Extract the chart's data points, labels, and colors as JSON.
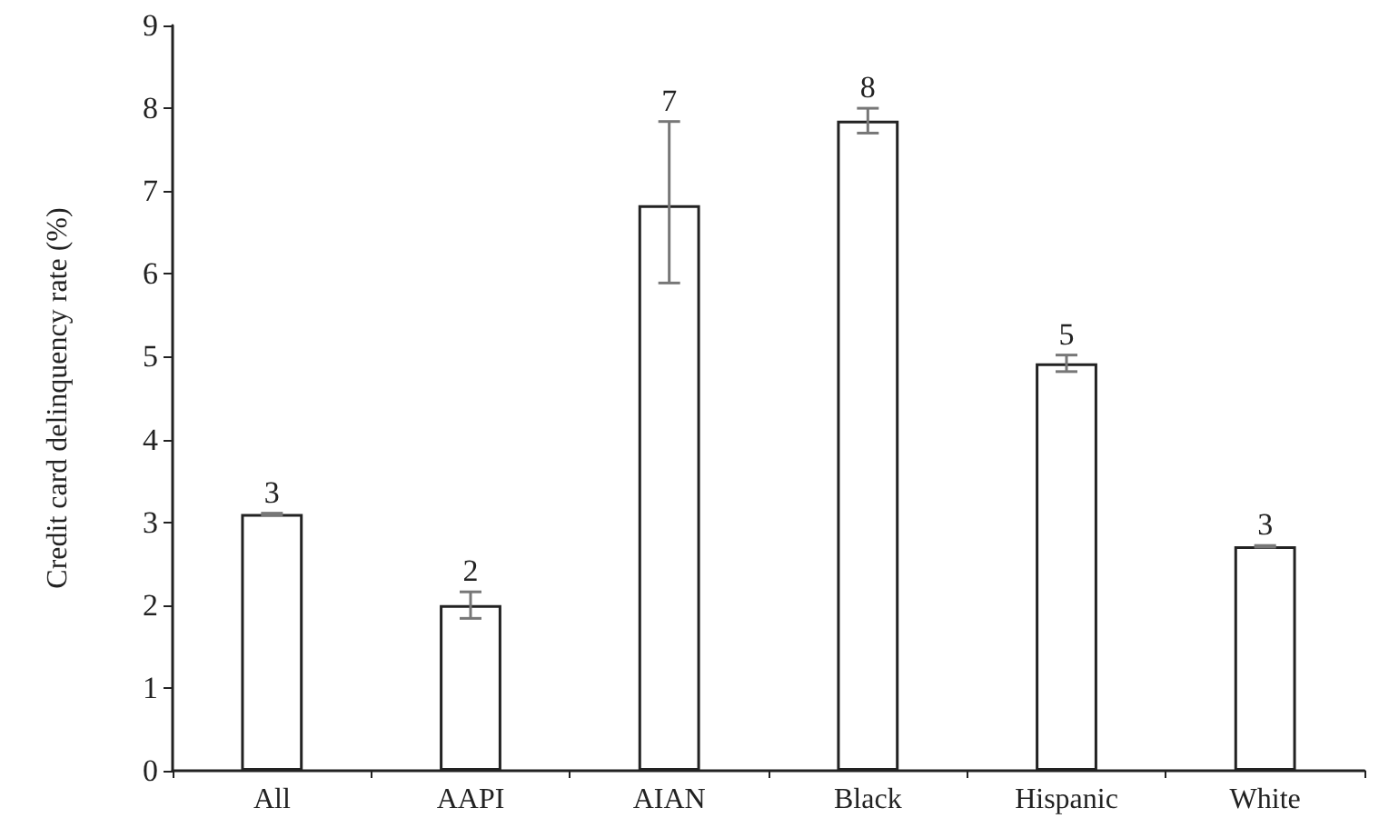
{
  "chart_data": {
    "type": "bar",
    "ylabel": "Credit card delinquency rate (%)",
    "categories": [
      "All",
      "AAPI",
      "AIAN",
      "Black",
      "Hispanic",
      "White"
    ],
    "values": [
      3.1,
      2.0,
      6.83,
      7.85,
      4.92,
      2.71
    ],
    "errors": [
      0.01,
      0.16,
      [
        5.89,
        7.84
      ],
      0.15,
      0.1,
      0.01
    ],
    "value_labels": [
      "3",
      "2",
      "7",
      "8",
      "5",
      "3"
    ],
    "color": "#ffffff",
    "ylim": [
      0,
      9
    ],
    "yticks": [
      0,
      1,
      2,
      3,
      4,
      5,
      6,
      7,
      8,
      9
    ],
    "grid": false
  }
}
